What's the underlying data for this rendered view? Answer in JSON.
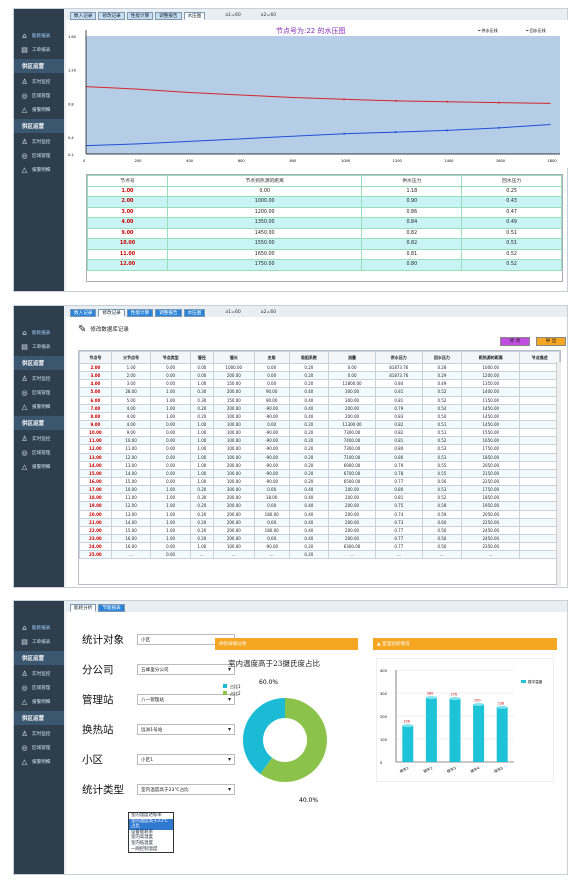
{
  "sidebar": {
    "sections": [
      {
        "title": "",
        "items": [
          {
            "label": "能耗报表",
            "icon": "monitor-icon"
          },
          {
            "label": "工单报表",
            "icon": "document-icon"
          }
        ]
      },
      {
        "title": "供区运营",
        "items": [
          {
            "label": "实时监控",
            "icon": "person-icon"
          },
          {
            "label": "区域管理",
            "icon": "target-icon"
          },
          {
            "label": "报警明细",
            "icon": "warning-icon"
          }
        ]
      },
      {
        "title": "供区运营",
        "items": [
          {
            "label": "实时监控",
            "icon": "person-icon"
          },
          {
            "label": "区域管理",
            "icon": "target-icon"
          },
          {
            "label": "报警明细",
            "icon": "warning-icon"
          }
        ]
      }
    ]
  },
  "panel1": {
    "tabs": [
      "数入记录",
      "修改记录",
      "性能计算",
      "调整报告",
      "水压图"
    ],
    "coords": [
      "a1=60",
      "a2=60"
    ],
    "chart_title": "节点号为:22 的水压图",
    "legend": [
      "供水压线",
      "回水压线"
    ],
    "chart_data": {
      "type": "line",
      "x": [
        0,
        200,
        400,
        600,
        800,
        1000,
        1200,
        1400,
        1600,
        1800
      ],
      "x_ticks": [
        "0",
        "200",
        "400",
        "600",
        "800",
        "1000",
        "1200",
        "1400",
        "1600",
        "1800"
      ],
      "y_ticks": [
        "0.2",
        "0.4",
        "0.8",
        "1.20",
        "1.60"
      ],
      "ylim": [
        0.2,
        1.6
      ],
      "series": [
        {
          "name": "供水压线",
          "values": [
            1.0,
            0.97,
            0.93,
            0.9,
            0.87,
            0.85,
            0.83,
            0.82,
            0.81,
            0.8
          ]
        },
        {
          "name": "回水压线",
          "values": [
            0.3,
            0.32,
            0.35,
            0.38,
            0.41,
            0.44,
            0.46,
            0.48,
            0.51,
            0.55
          ]
        }
      ]
    },
    "table": {
      "headers": [
        "节点号",
        "节点到热源的距离",
        "供水压力",
        "回水压力"
      ],
      "rows": [
        [
          "1.00",
          "0.00",
          "1.18",
          "0.25"
        ],
        [
          "2.00",
          "1000.00",
          "0.90",
          "0.43"
        ],
        [
          "3.00",
          "1200.00",
          "0.86",
          "0.47"
        ],
        [
          "4.00",
          "1350.00",
          "0.84",
          "0.49"
        ],
        [
          "9.00",
          "1450.00",
          "0.82",
          "0.51"
        ],
        [
          "10.00",
          "1550.00",
          "0.82",
          "0.51"
        ],
        [
          "11.00",
          "1650.00",
          "0.81",
          "0.52"
        ],
        [
          "12.00",
          "1750.00",
          "0.80",
          "0.52"
        ]
      ]
    }
  },
  "panel2": {
    "tabs": [
      "数入记录",
      "修改记录",
      "性能计算",
      "调整报告",
      "水压图"
    ],
    "coords": [
      "a1=60",
      "a2=60"
    ],
    "title": "修改数据库记录",
    "btn_modify": "修 改",
    "btn_export": "导 出",
    "headers": [
      "节点号",
      "父节点号",
      "节点类型",
      "管径",
      "管长",
      "支角",
      "局阻系数",
      "流量",
      "供水压力",
      "回水压力",
      "距热源的距离",
      "节点描述"
    ],
    "rows": [
      [
        "2.00",
        "1.00",
        "0.00",
        "0.00",
        "1000.00",
        "0.00",
        "0.20",
        "0.00",
        "81873.76",
        "0.28",
        "1000.00",
        ""
      ],
      [
        "3.00",
        "2.00",
        "0.00",
        "0.00",
        "200.00",
        "0.00",
        "0.20",
        "0.00",
        "81873.76",
        "0.29",
        "1200.00",
        ""
      ],
      [
        "4.00",
        "3.00",
        "0.00",
        "1.00",
        "150.00",
        "0.00",
        "0.20",
        "11800.00",
        "0.84",
        "0.49",
        "1350.00",
        ""
      ],
      [
        "5.00",
        "28.00",
        "1.00",
        "0.30",
        "200.00",
        "90.00",
        "0.40",
        "300.00",
        "0.81",
        "0.52",
        "1400.00",
        ""
      ],
      [
        "6.00",
        "5.00",
        "1.00",
        "0.30",
        "150.00",
        "90.00",
        "0.40",
        "300.00",
        "0.81",
        "0.52",
        "1150.00",
        ""
      ],
      [
        "7.00",
        "4.00",
        "1.00",
        "0.20",
        "200.00",
        "-90.00",
        "0.40",
        "200.00",
        "0.79",
        "0.54",
        "1450.00",
        ""
      ],
      [
        "8.00",
        "4.00",
        "1.00",
        "0.20",
        "100.00",
        "-90.00",
        "0.40",
        "200.00",
        "0.83",
        "0.50",
        "1450.00",
        ""
      ],
      [
        "9.00",
        "4.00",
        "0.00",
        "1.00",
        "100.00",
        "0.00",
        "0.20",
        "11300.00",
        "0.82",
        "0.51",
        "1450.00",
        ""
      ],
      [
        "10.00",
        "9.00",
        "0.00",
        "1.00",
        "100.00",
        "-90.00",
        "0.20",
        "7300.00",
        "0.82",
        "0.51",
        "1550.00",
        ""
      ],
      [
        "11.00",
        "10.00",
        "0.00",
        "1.00",
        "100.00",
        "-90.00",
        "0.20",
        "7400.00",
        "0.81",
        "0.52",
        "1650.00",
        ""
      ],
      [
        "12.00",
        "11.00",
        "0.00",
        "1.00",
        "100.00",
        "-90.00",
        "0.20",
        "7300.00",
        "0.80",
        "0.53",
        "1750.00",
        ""
      ],
      [
        "13.00",
        "12.00",
        "0.00",
        "1.00",
        "100.00",
        "-90.00",
        "0.20",
        "7100.00",
        "0.80",
        "0.53",
        "1850.00",
        ""
      ],
      [
        "14.00",
        "13.00",
        "0.00",
        "1.00",
        "200.00",
        "-90.00",
        "0.20",
        "6900.00",
        "0.79",
        "0.55",
        "2050.00",
        ""
      ],
      [
        "15.00",
        "14.00",
        "0.00",
        "1.00",
        "100.00",
        "-90.00",
        "0.20",
        "6700.00",
        "0.78",
        "0.55",
        "2150.00",
        ""
      ],
      [
        "16.00",
        "15.00",
        "0.00",
        "1.00",
        "100.00",
        "-90.00",
        "0.20",
        "6500.00",
        "0.77",
        "0.56",
        "2250.00",
        ""
      ],
      [
        "17.00",
        "10.00",
        "1.00",
        "0.20",
        "300.00",
        "0.00",
        "0.40",
        "100.00",
        "0.80",
        "0.53",
        "1750.00",
        ""
      ],
      [
        "18.00",
        "11.00",
        "1.00",
        "0.30",
        "200.00",
        "18.00",
        "0.40",
        "100.00",
        "0.81",
        "0.52",
        "1850.00",
        ""
      ],
      [
        "19.00",
        "12.00",
        "1.00",
        "0.20",
        "200.00",
        "0.00",
        "0.40",
        "200.00",
        "0.75",
        "0.58",
        "1950.00",
        ""
      ],
      [
        "20.00",
        "13.00",
        "1.00",
        "0.20",
        "200.00",
        "180.00",
        "0.40",
        "200.00",
        "0.74",
        "0.59",
        "2050.00",
        ""
      ],
      [
        "21.00",
        "14.00",
        "1.00",
        "0.20",
        "200.00",
        "0.00",
        "0.40",
        "200.00",
        "0.73",
        "0.60",
        "2250.00",
        ""
      ],
      [
        "22.00",
        "15.00",
        "1.00",
        "0.20",
        "200.00",
        "180.00",
        "0.40",
        "200.00",
        "0.77",
        "0.56",
        "2450.00",
        ""
      ],
      [
        "23.00",
        "16.00",
        "1.00",
        "0.20",
        "200.00",
        "0.00",
        "0.40",
        "200.00",
        "0.77",
        "0.56",
        "2450.00",
        ""
      ],
      [
        "24.00",
        "16.00",
        "0.00",
        "1.00",
        "100.00",
        "-90.00",
        "0.20",
        "6300.00",
        "0.77",
        "0.56",
        "2350.00",
        ""
      ],
      [
        "25.00",
        "...",
        "0.00",
        "...",
        "...",
        "...",
        "0.20",
        "...",
        "...",
        "...",
        "...",
        ""
      ]
    ]
  },
  "panel3": {
    "tabs": [
      "能耗分析",
      "节能报表"
    ],
    "form": [
      {
        "label": "统计对象",
        "value": "小区"
      },
      {
        "label": "分公司",
        "value": "五峰里分公司"
      },
      {
        "label": "管理站",
        "value": "八一管理站"
      },
      {
        "label": "换热站",
        "value": "远洲1号站"
      },
      {
        "label": "小区",
        "value": "小区1"
      },
      {
        "label": "统计类型",
        "value": "室内温度高于23℃占比"
      }
    ],
    "dropdown": [
      "室内温度达标率",
      "室内温度高于23℃占比",
      "设备能耗率",
      "室内高温度",
      "室内低温度",
      "一网控制温度"
    ],
    "donut_header": "供热效果分析",
    "donut_title": "室内温度高于23摄氏度占比",
    "donut_legend": [
      "占比1",
      "占比2"
    ],
    "donut_colors": [
      "#1bbbd6",
      "#8bc34a"
    ],
    "donut_values": [
      40.0,
      60.0
    ],
    "donut_labels": [
      "60.0%",
      "40.0%"
    ],
    "bar_header": "室温达标情况",
    "bar_legend": "楼宇温度",
    "bar_chart": {
      "categories": [
        "楼宇1",
        "楼宇2",
        "楼宇3",
        "楼宇4",
        "楼宇5"
      ],
      "values": [
        158,
        280,
        276,
        250,
        238
      ],
      "labels": [
        "158",
        "280",
        "276",
        "250",
        "238"
      ],
      "y_ticks": [
        "400",
        "300",
        "200",
        "100",
        "0"
      ],
      "ylim": [
        0,
        400
      ]
    }
  }
}
